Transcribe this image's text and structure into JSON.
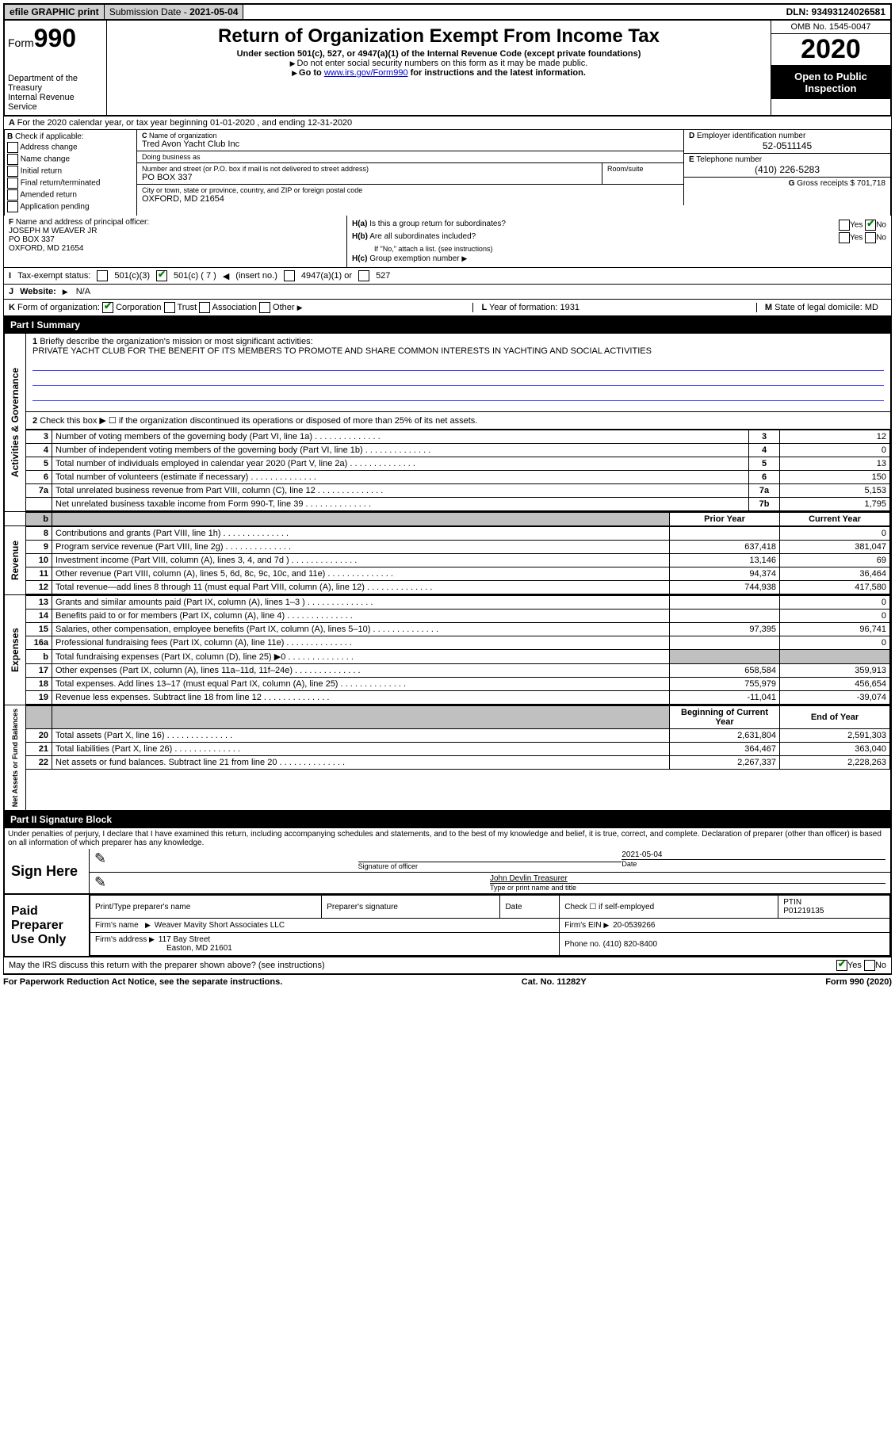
{
  "top": {
    "efile": "efile GRAPHIC print",
    "sub_label": "Submission Date - ",
    "sub_date": "2021-05-04",
    "dln": "DLN: 93493124026581"
  },
  "header": {
    "form_label": "Form",
    "form_num": "990",
    "dept": "Department of the Treasury\nInternal Revenue Service",
    "title": "Return of Organization Exempt From Income Tax",
    "sub1": "Under section 501(c), 527, or 4947(a)(1) of the Internal Revenue Code (except private foundations)",
    "sub2": "Do not enter social security numbers on this form as it may be made public.",
    "sub3_pre": "Go to ",
    "sub3_link": "www.irs.gov/Form990",
    "sub3_post": " for instructions and the latest information.",
    "omb": "OMB No. 1545-0047",
    "year": "2020",
    "open": "Open to Public Inspection"
  },
  "rowA": "For the 2020 calendar year, or tax year beginning 01-01-2020   , and ending 12-31-2020",
  "B": {
    "intro": "Check if applicable:",
    "opts": [
      "Address change",
      "Name change",
      "Initial return",
      "Final return/terminated",
      "Amended return",
      "Application pending"
    ]
  },
  "C": {
    "name_label": "Name of organization",
    "name": "Tred Avon Yacht Club Inc",
    "dba_label": "Doing business as",
    "dba": "",
    "addr_label": "Number and street (or P.O. box if mail is not delivered to street address)",
    "room_label": "Room/suite",
    "addr": "PO BOX 337",
    "city_label": "City or town, state or province, country, and ZIP or foreign postal code",
    "city": "OXFORD, MD  21654"
  },
  "D": {
    "label": "Employer identification number",
    "value": "52-0511145"
  },
  "E": {
    "label": "Telephone number",
    "value": "(410) 226-5283"
  },
  "G": {
    "label": "Gross receipts $",
    "value": "701,718"
  },
  "F": {
    "label": "Name and address of principal officer:",
    "name": "JOSEPH M WEAVER JR",
    "addr1": "PO BOX 337",
    "addr2": "OXFORD, MD  21654"
  },
  "H": {
    "a": "Is this a group return for subordinates?",
    "b": "Are all subordinates included?",
    "b_note": "If \"No,\" attach a list. (see instructions)",
    "c": "Group exemption number"
  },
  "I": {
    "label": "Tax-exempt status:",
    "opt1": "501(c)(3)",
    "opt2": "501(c) ( 7 )",
    "opt2_note": "(insert no.)",
    "opt3": "4947(a)(1) or",
    "opt4": "527"
  },
  "J": {
    "label": "Website:",
    "value": "N/A"
  },
  "K": {
    "label": "Form of organization:",
    "opts": [
      "Corporation",
      "Trust",
      "Association",
      "Other"
    ]
  },
  "L": {
    "label": "Year of formation:",
    "value": "1931"
  },
  "M": {
    "label": "State of legal domicile:",
    "value": "MD"
  },
  "part1": {
    "title": "Part I    Summary",
    "q1": "Briefly describe the organization's mission or most significant activities:",
    "mission": "PRIVATE YACHT CLUB FOR THE BENEFIT OF ITS MEMBERS TO PROMOTE AND SHARE COMMON INTERESTS IN YACHTING AND SOCIAL ACTIVITIES",
    "q2": "Check this box ▶ ☐  if the organization discontinued its operations or disposed of more than 25% of its net assets."
  },
  "sections": {
    "gov": "Activities & Governance",
    "rev": "Revenue",
    "exp": "Expenses",
    "net": "Net Assets or Fund Balances"
  },
  "cols": {
    "prior": "Prior Year",
    "current": "Current Year",
    "beg": "Beginning of Current Year",
    "end": "End of Year"
  },
  "gov_rows": [
    {
      "n": "3",
      "d": "Number of voting members of the governing body (Part VI, line 1a)",
      "box": "3",
      "v": "12"
    },
    {
      "n": "4",
      "d": "Number of independent voting members of the governing body (Part VI, line 1b)",
      "box": "4",
      "v": "0"
    },
    {
      "n": "5",
      "d": "Total number of individuals employed in calendar year 2020 (Part V, line 2a)",
      "box": "5",
      "v": "13"
    },
    {
      "n": "6",
      "d": "Total number of volunteers (estimate if necessary)",
      "box": "6",
      "v": "150"
    },
    {
      "n": "7a",
      "d": "Total unrelated business revenue from Part VIII, column (C), line 12",
      "box": "7a",
      "v": "5,153"
    },
    {
      "n": "",
      "d": "Net unrelated business taxable income from Form 990-T, line 39",
      "box": "7b",
      "v": "1,795"
    }
  ],
  "rev_rows": [
    {
      "n": "8",
      "d": "Contributions and grants (Part VIII, line 1h)",
      "p": "",
      "c": "0"
    },
    {
      "n": "9",
      "d": "Program service revenue (Part VIII, line 2g)",
      "p": "637,418",
      "c": "381,047"
    },
    {
      "n": "10",
      "d": "Investment income (Part VIII, column (A), lines 3, 4, and 7d )",
      "p": "13,146",
      "c": "69"
    },
    {
      "n": "11",
      "d": "Other revenue (Part VIII, column (A), lines 5, 6d, 8c, 9c, 10c, and 11e)",
      "p": "94,374",
      "c": "36,464"
    },
    {
      "n": "12",
      "d": "Total revenue—add lines 8 through 11 (must equal Part VIII, column (A), line 12)",
      "p": "744,938",
      "c": "417,580"
    }
  ],
  "exp_rows": [
    {
      "n": "13",
      "d": "Grants and similar amounts paid (Part IX, column (A), lines 1–3 )",
      "p": "",
      "c": "0"
    },
    {
      "n": "14",
      "d": "Benefits paid to or for members (Part IX, column (A), line 4)",
      "p": "",
      "c": "0"
    },
    {
      "n": "15",
      "d": "Salaries, other compensation, employee benefits (Part IX, column (A), lines 5–10)",
      "p": "97,395",
      "c": "96,741"
    },
    {
      "n": "16a",
      "d": "Professional fundraising fees (Part IX, column (A), line 11e)",
      "p": "",
      "c": "0"
    },
    {
      "n": "b",
      "d": "Total fundraising expenses (Part IX, column (D), line 25) ▶0",
      "p": "grey",
      "c": "grey"
    },
    {
      "n": "17",
      "d": "Other expenses (Part IX, column (A), lines 11a–11d, 11f–24e)",
      "p": "658,584",
      "c": "359,913"
    },
    {
      "n": "18",
      "d": "Total expenses. Add lines 13–17 (must equal Part IX, column (A), line 25)",
      "p": "755,979",
      "c": "456,654"
    },
    {
      "n": "19",
      "d": "Revenue less expenses. Subtract line 18 from line 12",
      "p": "-11,041",
      "c": "-39,074"
    }
  ],
  "net_rows": [
    {
      "n": "20",
      "d": "Total assets (Part X, line 16)",
      "p": "2,631,804",
      "c": "2,591,303"
    },
    {
      "n": "21",
      "d": "Total liabilities (Part X, line 26)",
      "p": "364,467",
      "c": "363,040"
    },
    {
      "n": "22",
      "d": "Net assets or fund balances. Subtract line 21 from line 20",
      "p": "2,267,337",
      "c": "2,228,263"
    }
  ],
  "part2": {
    "title": "Part II    Signature Block",
    "decl": "Under penalties of perjury, I declare that I have examined this return, including accompanying schedules and statements, and to the best of my knowledge and belief, it is true, correct, and complete. Declaration of preparer (other than officer) is based on all information of which preparer has any knowledge."
  },
  "sign": {
    "here": "Sign Here",
    "sig_label": "Signature of officer",
    "date_label": "Date",
    "date": "2021-05-04",
    "name": "John Devlin  Treasurer",
    "name_label": "Type or print name and title"
  },
  "paid": {
    "label": "Paid Preparer Use Only",
    "h1": "Print/Type preparer's name",
    "h2": "Preparer's signature",
    "h3": "Date",
    "h4_pre": "Check ☐ if self-employed",
    "ptin_label": "PTIN",
    "ptin": "P01219135",
    "firm_label": "Firm's name",
    "firm": "Weaver Mavity Short Associates LLC",
    "ein_label": "Firm's EIN",
    "ein": "20-0539266",
    "addr_label": "Firm's address",
    "addr1": "117 Bay Street",
    "addr2": "Easton, MD  21601",
    "phone_label": "Phone no.",
    "phone": "(410) 820-8400",
    "discuss": "May the IRS discuss this return with the preparer shown above? (see instructions)"
  },
  "footer": {
    "left": "For Paperwork Reduction Act Notice, see the separate instructions.",
    "mid": "Cat. No. 11282Y",
    "right": "Form 990 (2020)"
  }
}
